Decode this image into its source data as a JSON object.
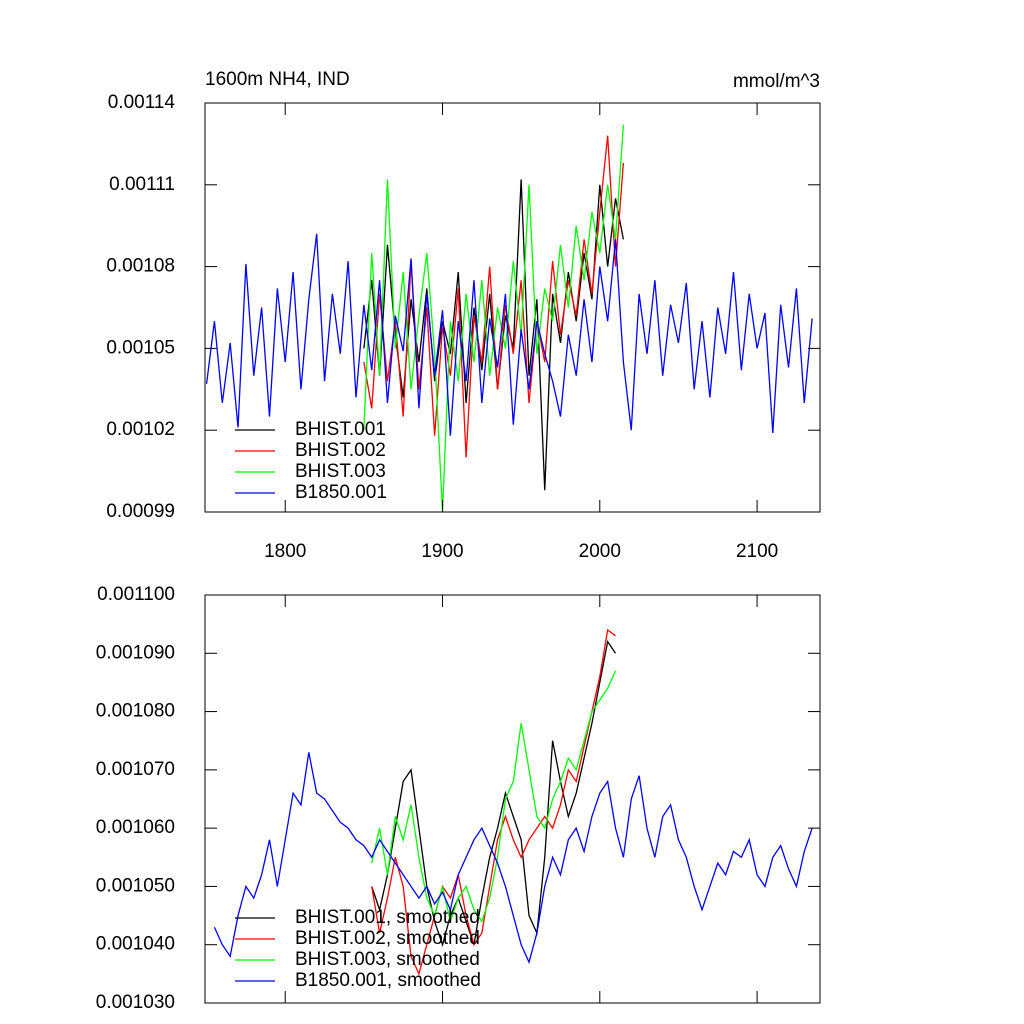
{
  "chart_data": [
    {
      "type": "line",
      "title": "1600m NH4, IND",
      "units": "mmol/m^3",
      "xlim": [
        1749,
        2140
      ],
      "xticks": [
        1800,
        1900,
        2000,
        2100
      ],
      "ylim": [
        0.00099,
        0.00114
      ],
      "yticks": [
        0.00099,
        0.00102,
        0.00105,
        0.00108,
        0.00111,
        0.00114
      ],
      "legend": "lower left",
      "series": [
        {
          "name": "BHIST.001",
          "color": "#000000",
          "x": [
            1850,
            1855,
            1860,
            1865,
            1870,
            1875,
            1880,
            1885,
            1890,
            1895,
            1900,
            1905,
            1910,
            1915,
            1920,
            1925,
            1930,
            1935,
            1940,
            1945,
            1950,
            1955,
            1960,
            1965,
            1970,
            1975,
            1980,
            1985,
            1990,
            1995,
            2000,
            2005,
            2010,
            2015
          ],
          "values": [
            0.00105,
            0.001075,
            0.00104,
            0.001088,
            0.001055,
            0.001032,
            0.001068,
            0.001045,
            0.001072,
            0.001038,
            0.00106,
            0.001048,
            0.001078,
            0.00103,
            0.001065,
            0.001042,
            0.00107,
            0.001035,
            0.001062,
            0.00105,
            0.001112,
            0.00104,
            0.001068,
            0.000998,
            0.00107,
            0.001052,
            0.001078,
            0.00106,
            0.001085,
            0.001068,
            0.00111,
            0.00108,
            0.001105,
            0.00109
          ]
        },
        {
          "name": "BHIST.002",
          "color": "#ff0000",
          "x": [
            1850,
            1855,
            1860,
            1865,
            1870,
            1875,
            1880,
            1885,
            1890,
            1895,
            1900,
            1905,
            1910,
            1915,
            1920,
            1925,
            1930,
            1935,
            1940,
            1945,
            1950,
            1955,
            1960,
            1965,
            1970,
            1975,
            1980,
            1985,
            1990,
            1995,
            2000,
            2005,
            2010,
            2015
          ],
          "values": [
            0.001045,
            0.001028,
            0.00107,
            0.001038,
            0.00106,
            0.001025,
            0.001082,
            0.001035,
            0.001065,
            0.001018,
            0.001058,
            0.00104,
            0.001072,
            0.00101,
            0.001062,
            0.001045,
            0.00108,
            0.001035,
            0.001066,
            0.001048,
            0.001075,
            0.00103,
            0.00106,
            0.001045,
            0.001082,
            0.001055,
            0.001075,
            0.001062,
            0.00109,
            0.00107,
            0.0011,
            0.001128,
            0.00108,
            0.001118
          ]
        },
        {
          "name": "BHIST.003",
          "color": "#00ff00",
          "x": [
            1850,
            1855,
            1860,
            1865,
            1870,
            1875,
            1880,
            1885,
            1890,
            1895,
            1900,
            1905,
            1910,
            1915,
            1920,
            1925,
            1930,
            1935,
            1940,
            1945,
            1950,
            1955,
            1960,
            1965,
            1970,
            1975,
            1980,
            1985,
            1990,
            1995,
            2000,
            2005,
            2010,
            2015
          ],
          "values": [
            0.00102,
            0.001085,
            0.00104,
            0.001112,
            0.00105,
            0.001078,
            0.001035,
            0.001062,
            0.001085,
            0.001048,
            0.00099,
            0.00106,
            0.001038,
            0.00107,
            0.001045,
            0.001075,
            0.00104,
            0.001065,
            0.00105,
            0.001082,
            0.001055,
            0.00111,
            0.001048,
            0.001072,
            0.00106,
            0.001088,
            0.001065,
            0.001095,
            0.001075,
            0.0011,
            0.001085,
            0.00111,
            0.00109,
            0.001132
          ]
        },
        {
          "name": "B1850.001",
          "color": "#0000ff",
          "x": [
            1750,
            1755,
            1760,
            1765,
            1770,
            1775,
            1780,
            1785,
            1790,
            1795,
            1800,
            1805,
            1810,
            1815,
            1820,
            1825,
            1830,
            1835,
            1840,
            1845,
            1850,
            1855,
            1860,
            1865,
            1870,
            1875,
            1880,
            1885,
            1890,
            1895,
            1900,
            1905,
            1910,
            1915,
            1920,
            1925,
            1930,
            1935,
            1940,
            1945,
            1950,
            1955,
            1960,
            1965,
            1970,
            1975,
            1980,
            1985,
            1990,
            1995,
            2000,
            2005,
            2010,
            2015,
            2020,
            2025,
            2030,
            2035,
            2040,
            2045,
            2050,
            2055,
            2060,
            2065,
            2070,
            2075,
            2080,
            2085,
            2090,
            2095,
            2100,
            2105,
            2110,
            2115,
            2120,
            2125,
            2130,
            2135
          ],
          "values": [
            0.001037,
            0.00106,
            0.00103,
            0.001052,
            0.001021,
            0.001081,
            0.00104,
            0.001065,
            0.001025,
            0.001072,
            0.001045,
            0.001078,
            0.001035,
            0.001068,
            0.001092,
            0.001038,
            0.00107,
            0.001048,
            0.001082,
            0.001032,
            0.001066,
            0.001042,
            0.001075,
            0.00103,
            0.001062,
            0.001049,
            0.001083,
            0.001028,
            0.00107,
            0.00104,
            0.001064,
            0.001018,
            0.00106,
            0.001038,
            0.001075,
            0.00103,
            0.001061,
            0.001043,
            0.00107,
            0.001022,
            0.001057,
            0.001035,
            0.00106,
            0.001048,
            0.001038,
            0.001025,
            0.001055,
            0.00104,
            0.001068,
            0.001045,
            0.00108,
            0.00106,
            0.00109,
            0.001045,
            0.00102,
            0.00107,
            0.001048,
            0.001075,
            0.00104,
            0.001066,
            0.001052,
            0.001074,
            0.001035,
            0.00106,
            0.001032,
            0.001065,
            0.001048,
            0.001078,
            0.001042,
            0.00107,
            0.00105,
            0.001063,
            0.001019,
            0.001066,
            0.001043,
            0.001072,
            0.00103,
            0.001061
          ]
        }
      ]
    },
    {
      "type": "line",
      "xlim": [
        1749,
        2140
      ],
      "xticks": [
        1800,
        1900,
        2000,
        2100
      ],
      "ylim": [
        0.00103,
        0.0011
      ],
      "yticks": [
        {
          "value": 0.00103,
          "label": "0.001030"
        },
        {
          "value": 0.00104,
          "label": "0.001040"
        },
        {
          "value": 0.00105,
          "label": "0.001050"
        },
        {
          "value": 0.00106,
          "label": "0.001060"
        },
        {
          "value": 0.00107,
          "label": "0.001070"
        },
        {
          "value": 0.00108,
          "label": "0.001080"
        },
        {
          "value": 0.00109,
          "label": "0.001090"
        },
        {
          "value": 0.0011,
          "label": "0.001100"
        }
      ],
      "legend": "lower left",
      "series": [
        {
          "name": "BHIST.001, smoothed",
          "color": "#000000",
          "x": [
            1855,
            1860,
            1865,
            1870,
            1875,
            1880,
            1885,
            1890,
            1895,
            1900,
            1905,
            1910,
            1915,
            1920,
            1925,
            1930,
            1935,
            1940,
            1945,
            1950,
            1955,
            1960,
            1965,
            1970,
            1975,
            1980,
            1985,
            1990,
            1995,
            2000,
            2005,
            2010
          ],
          "values": [
            0.00105,
            0.001046,
            0.001052,
            0.00106,
            0.001068,
            0.00107,
            0.00106,
            0.00105,
            0.001044,
            0.00104,
            0.001045,
            0.001048,
            0.001044,
            0.00104,
            0.001048,
            0.001055,
            0.00106,
            0.001066,
            0.001062,
            0.001058,
            0.001045,
            0.001042,
            0.001055,
            0.001075,
            0.001068,
            0.001062,
            0.001066,
            0.001072,
            0.001078,
            0.001085,
            0.001092,
            0.00109
          ]
        },
        {
          "name": "BHIST.002, smoothed",
          "color": "#ff0000",
          "x": [
            1855,
            1860,
            1865,
            1870,
            1875,
            1880,
            1885,
            1890,
            1895,
            1900,
            1905,
            1910,
            1915,
            1920,
            1925,
            1930,
            1935,
            1940,
            1945,
            1950,
            1955,
            1960,
            1965,
            1970,
            1975,
            1980,
            1985,
            1990,
            1995,
            2000,
            2005,
            2010
          ],
          "values": [
            0.00105,
            0.001042,
            0.001048,
            0.001055,
            0.00105,
            0.001038,
            0.001035,
            0.00104,
            0.001045,
            0.00105,
            0.001048,
            0.001052,
            0.001045,
            0.00104,
            0.001042,
            0.00105,
            0.001058,
            0.001062,
            0.001058,
            0.001055,
            0.001058,
            0.00106,
            0.001062,
            0.00106,
            0.001064,
            0.00107,
            0.001068,
            0.001074,
            0.00108,
            0.001086,
            0.001094,
            0.001093
          ]
        },
        {
          "name": "BHIST.003, smoothed",
          "color": "#00ff00",
          "x": [
            1855,
            1860,
            1865,
            1870,
            1875,
            1880,
            1885,
            1890,
            1895,
            1900,
            1905,
            1910,
            1915,
            1920,
            1925,
            1930,
            1935,
            1940,
            1945,
            1950,
            1955,
            1960,
            1965,
            1970,
            1975,
            1980,
            1985,
            1990,
            1995,
            2000,
            2005,
            2010
          ],
          "values": [
            0.001054,
            0.00106,
            0.001052,
            0.001062,
            0.001058,
            0.001064,
            0.001055,
            0.001048,
            0.001045,
            0.00105,
            0.001044,
            0.001048,
            0.00105,
            0.001046,
            0.001044,
            0.001048,
            0.001055,
            0.001065,
            0.001068,
            0.001078,
            0.00107,
            0.001062,
            0.00106,
            0.001065,
            0.001068,
            0.001072,
            0.00107,
            0.001075,
            0.00108,
            0.001082,
            0.001084,
            0.001087
          ]
        },
        {
          "name": "B1850.001, smoothed",
          "color": "#0000ff",
          "x": [
            1755,
            1760,
            1765,
            1770,
            1775,
            1780,
            1785,
            1790,
            1795,
            1800,
            1805,
            1810,
            1815,
            1820,
            1825,
            1830,
            1835,
            1840,
            1845,
            1850,
            1855,
            1860,
            1865,
            1870,
            1875,
            1880,
            1885,
            1890,
            1895,
            1900,
            1905,
            1910,
            1915,
            1920,
            1925,
            1930,
            1935,
            1940,
            1945,
            1950,
            1955,
            1960,
            1965,
            1970,
            1975,
            1980,
            1985,
            1990,
            1995,
            2000,
            2005,
            2010,
            2015,
            2020,
            2025,
            2030,
            2035,
            2040,
            2045,
            2050,
            2055,
            2060,
            2065,
            2070,
            2075,
            2080,
            2085,
            2090,
            2095,
            2100,
            2105,
            2110,
            2115,
            2120,
            2125,
            2130,
            2135
          ],
          "values": [
            0.001043,
            0.00104,
            0.001038,
            0.001045,
            0.00105,
            0.001048,
            0.001052,
            0.001058,
            0.00105,
            0.001058,
            0.001066,
            0.001064,
            0.001073,
            0.001066,
            0.001065,
            0.001063,
            0.001061,
            0.00106,
            0.001058,
            0.001057,
            0.001055,
            0.001058,
            0.001056,
            0.001054,
            0.001052,
            0.00105,
            0.001048,
            0.00105,
            0.001047,
            0.001049,
            0.001046,
            0.001052,
            0.001055,
            0.001058,
            0.00106,
            0.001057,
            0.001054,
            0.00105,
            0.001045,
            0.00104,
            0.001037,
            0.001042,
            0.00105,
            0.001055,
            0.001052,
            0.001058,
            0.00106,
            0.001056,
            0.001062,
            0.001066,
            0.001068,
            0.00106,
            0.001055,
            0.001065,
            0.001069,
            0.00106,
            0.001055,
            0.001062,
            0.001064,
            0.001058,
            0.001055,
            0.00105,
            0.001046,
            0.00105,
            0.001054,
            0.001052,
            0.001056,
            0.001055,
            0.001058,
            0.001052,
            0.00105,
            0.001055,
            0.001057,
            0.001053,
            0.00105,
            0.001056,
            0.00106
          ]
        }
      ]
    }
  ]
}
